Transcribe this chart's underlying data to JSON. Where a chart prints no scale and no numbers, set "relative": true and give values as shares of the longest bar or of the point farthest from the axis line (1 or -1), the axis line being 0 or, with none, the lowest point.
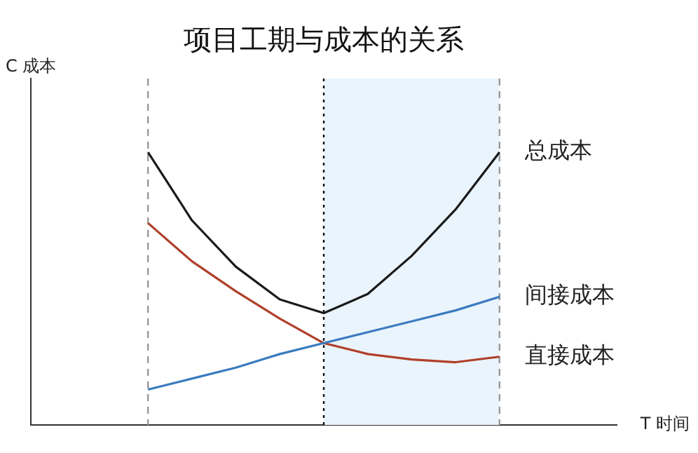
{
  "chart_data": {
    "type": "line",
    "title": "项目工期与成本的关系",
    "annotations": [
      "C 成本",
      "T 时间"
    ],
    "relative": true,
    "legend": false,
    "marker": "none",
    "categories": [
      null,
      null,
      null,
      null,
      null,
      null,
      null,
      null,
      null
    ],
    "series": [
      {
        "name": "总成本",
        "color": "#1a1a1a",
        "values": [
          1,
          0.75,
          0.58,
          0.46,
          0.41,
          0.48,
          0.62,
          0.79,
          1
        ]
      },
      {
        "name": "间接成本",
        "color": "#3a7bbf",
        "values": [
          0.13,
          0.17,
          0.21,
          0.26,
          0.3,
          0.34,
          0.38,
          0.42,
          0.47
        ]
      },
      {
        "name": "直接成本",
        "color": "#b0402a",
        "values": [
          0.74,
          0.6,
          0.49,
          0.39,
          0.3,
          0.26,
          0.24,
          0.23,
          0.25
        ]
      }
    ]
  }
}
